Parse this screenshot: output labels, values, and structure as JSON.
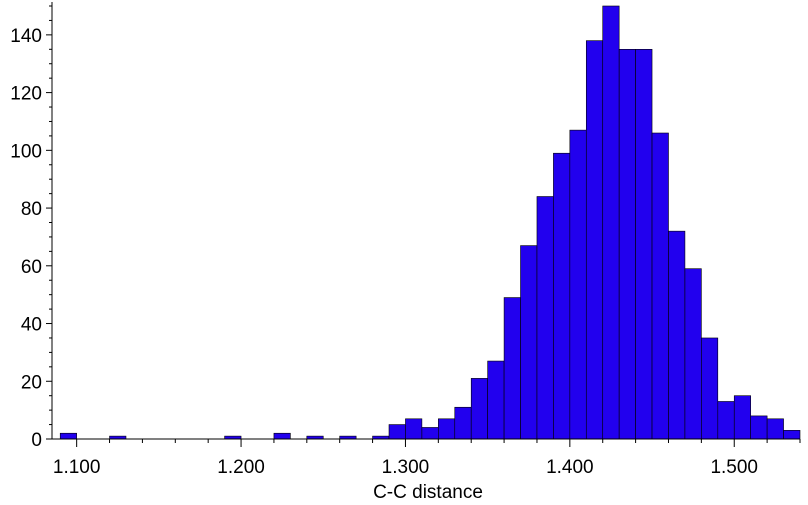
{
  "chart_data": {
    "type": "bar",
    "title": "",
    "xlabel": "C-C distance",
    "ylabel": "",
    "bin_width": 0.01,
    "xlim": [
      1.085,
      1.54
    ],
    "ylim": [
      0,
      150
    ],
    "x_ticks": [
      "1.100",
      "1.200",
      "1.300",
      "1.400",
      "1.500"
    ],
    "y_ticks": [
      "0",
      "20",
      "40",
      "60",
      "80",
      "100",
      "120",
      "140"
    ],
    "grid": false,
    "bar_color": "#2200ee",
    "bin_starts": [
      1.09,
      1.12,
      1.19,
      1.22,
      1.24,
      1.26,
      1.28,
      1.29,
      1.3,
      1.31,
      1.32,
      1.33,
      1.34,
      1.35,
      1.36,
      1.37,
      1.38,
      1.39,
      1.4,
      1.41,
      1.42,
      1.43,
      1.44,
      1.45,
      1.46,
      1.47,
      1.48,
      1.49,
      1.5,
      1.51,
      1.52,
      1.53
    ],
    "values": [
      2,
      1,
      1,
      2,
      1,
      1,
      1,
      5,
      7,
      4,
      7,
      11,
      21,
      27,
      49,
      67,
      84,
      99,
      107,
      138,
      150,
      135,
      135,
      106,
      72,
      59,
      35,
      13,
      15,
      8,
      7,
      3
    ]
  }
}
